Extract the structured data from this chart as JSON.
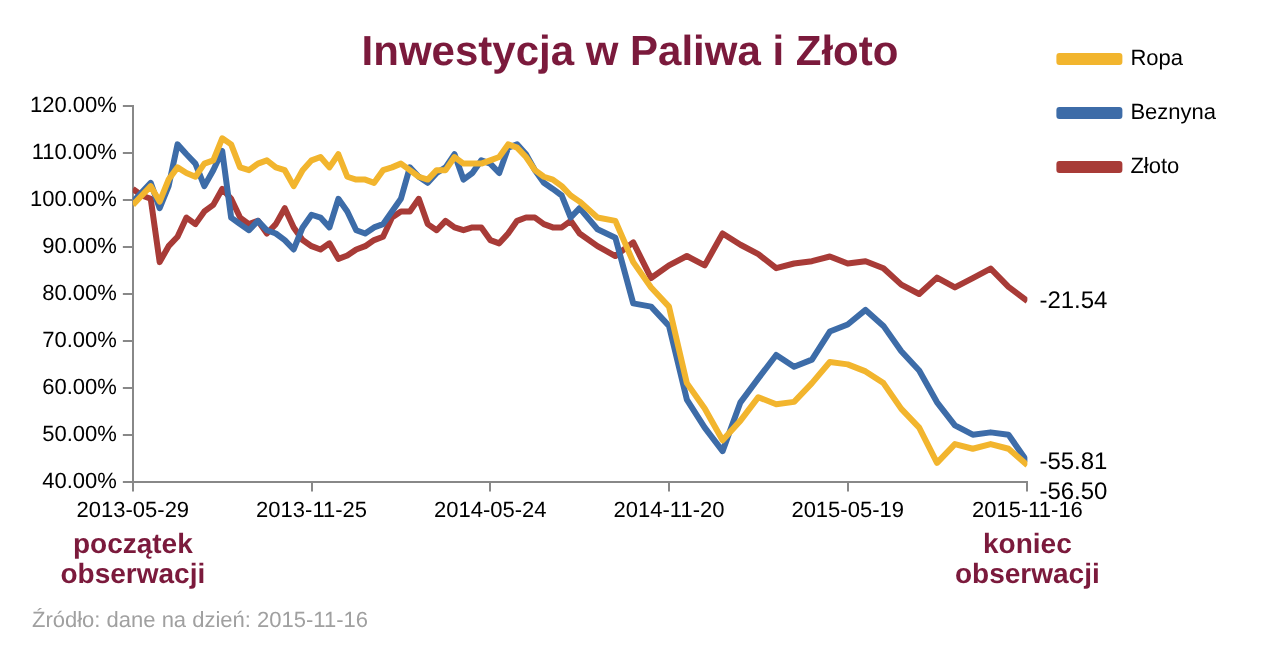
{
  "chart_data": {
    "type": "line",
    "title": "Inwestycja w Paliwa i Złoto",
    "x": [
      "2013-05-29",
      "2013-06-07",
      "2013-06-16",
      "2013-06-25",
      "2013-07-04",
      "2013-07-13",
      "2013-07-22",
      "2013-07-31",
      "2013-08-09",
      "2013-08-18",
      "2013-08-27",
      "2013-09-05",
      "2013-09-14",
      "2013-09-23",
      "2013-10-02",
      "2013-10-11",
      "2013-10-20",
      "2013-10-29",
      "2013-11-07",
      "2013-11-16",
      "2013-11-25",
      "2013-12-04",
      "2013-12-13",
      "2013-12-22",
      "2013-12-31",
      "2014-01-09",
      "2014-01-18",
      "2014-01-27",
      "2014-02-05",
      "2014-02-14",
      "2014-02-23",
      "2014-03-04",
      "2014-03-13",
      "2014-03-22",
      "2014-03-31",
      "2014-04-09",
      "2014-04-18",
      "2014-04-27",
      "2014-05-06",
      "2014-05-15",
      "2014-05-24",
      "2014-06-02",
      "2014-06-11",
      "2014-06-20",
      "2014-06-29",
      "2014-07-08",
      "2014-07-17",
      "2014-07-26",
      "2014-08-04",
      "2014-08-13",
      "2014-08-22",
      "2014-09-09",
      "2014-09-27",
      "2014-10-15",
      "2014-11-02",
      "2014-11-20",
      "2014-12-08",
      "2014-12-26",
      "2015-01-13",
      "2015-01-31",
      "2015-02-18",
      "2015-03-08",
      "2015-03-26",
      "2015-04-13",
      "2015-05-01",
      "2015-05-19",
      "2015-06-06",
      "2015-06-24",
      "2015-07-12",
      "2015-07-30",
      "2015-08-17",
      "2015-09-04",
      "2015-09-22",
      "2015-10-10",
      "2015-10-28",
      "2015-11-16"
    ],
    "series": [
      {
        "name": "Ropa",
        "color": "#f2b52e",
        "values": [
          99,
          101,
          103,
          99.7,
          104.4,
          107,
          105.8,
          105,
          107.8,
          108.5,
          113.2,
          111.9,
          107,
          106.4,
          107.8,
          108.5,
          107,
          106.4,
          103,
          106.4,
          108.5,
          109.2,
          107,
          109.8,
          105,
          104.4,
          104.4,
          103.7,
          106.4,
          107,
          107.8,
          106.4,
          105,
          104.4,
          106.4,
          106.4,
          109.2,
          107.8,
          107.8,
          107.8,
          108.5,
          109.2,
          111.9,
          111.2,
          109.2,
          106.4,
          105,
          104.4,
          103,
          101,
          99.7,
          96.3,
          95.6,
          86.8,
          81.4,
          77.3,
          61,
          55.6,
          48.8,
          53,
          58,
          56.5,
          57,
          61,
          65.5,
          65,
          63.5,
          61,
          55.5,
          51.5,
          44,
          48,
          47,
          48,
          47,
          43.5
        ]
      },
      {
        "name": "Beznyna",
        "color": "#3d6ca8",
        "values": [
          99.7,
          101.7,
          103.7,
          98.3,
          103,
          111.9,
          109.8,
          107.8,
          103,
          106.4,
          110.5,
          96.3,
          94.9,
          93.6,
          95.6,
          93.6,
          92.9,
          91.5,
          89.5,
          94.2,
          96.9,
          96.3,
          94.2,
          100.3,
          97.6,
          93.6,
          92.9,
          94.2,
          94.9,
          97.6,
          100.3,
          107,
          105,
          103.7,
          105.8,
          107,
          109.8,
          104.4,
          105.8,
          108.5,
          107.8,
          105.8,
          111.2,
          111.9,
          109.8,
          106.4,
          103.7,
          102.4,
          101,
          96.3,
          98.3,
          93.8,
          92,
          78,
          77.3,
          73.2,
          57.5,
          51.5,
          46.5,
          56.9,
          62,
          67,
          64.5,
          66,
          72,
          73.5,
          76.6,
          73.2,
          67.8,
          63.7,
          56.9,
          52,
          50,
          50.5,
          50,
          44.2
        ]
      },
      {
        "name": "Złoto",
        "color": "#a83b37",
        "values": [
          102.4,
          101,
          100.3,
          86.8,
          90.2,
          92.2,
          96.3,
          94.9,
          97.6,
          99,
          102.4,
          100.3,
          96.3,
          94.9,
          95.6,
          92.9,
          94.9,
          98.3,
          94.2,
          91.5,
          90.2,
          89.5,
          90.8,
          87.5,
          88.2,
          89.5,
          90.2,
          91.5,
          92.2,
          96.3,
          97.6,
          97.6,
          100.3,
          94.9,
          93.6,
          95.6,
          94.2,
          93.6,
          94.2,
          94.2,
          91.5,
          90.8,
          92.9,
          95.6,
          96.3,
          96.3,
          94.9,
          94.2,
          94.2,
          95.6,
          92.9,
          90.2,
          88.1,
          91,
          83.4,
          86.1,
          88.1,
          86.1,
          92.9,
          90.5,
          88.5,
          85.5,
          86.5,
          87,
          88,
          86.5,
          87,
          85.5,
          82,
          80,
          83.5,
          81.4,
          83.4,
          85.4,
          81.5,
          78.5
        ]
      }
    ],
    "xlim": [
      "2013-05-29",
      "2015-11-16"
    ],
    "xticks": [
      "2013-05-29",
      "2013-11-25",
      "2014-05-24",
      "2014-11-20",
      "2015-05-19",
      "2015-11-16"
    ],
    "ylim": [
      40,
      120
    ],
    "yticks": [
      {
        "value": 40,
        "label": "40.00%"
      },
      {
        "value": 50,
        "label": "50.00%"
      },
      {
        "value": 60,
        "label": "60.00%"
      },
      {
        "value": 70,
        "label": "70.00%"
      },
      {
        "value": 80,
        "label": "80.00%"
      },
      {
        "value": 90,
        "label": "90.00%"
      },
      {
        "value": 100,
        "label": "100.00%"
      },
      {
        "value": 110,
        "label": "110.00%"
      },
      {
        "value": 120,
        "label": "120.00%"
      }
    ],
    "grid": false,
    "legend": "top right",
    "marker": "none",
    "line_style": "solid",
    "annotations": [
      {
        "text": "-21.54",
        "x": "2015-11-16",
        "y": 78.46
      },
      {
        "text": "-55.81",
        "x": "2015-11-16",
        "y": 44.19
      },
      {
        "text": "-56.50",
        "x": "2015-11-16",
        "y": 43.5
      },
      "początek obserwacji",
      "koniec obserwacji",
      "Źródło: dane na dzień: 2015-11-16"
    ]
  }
}
